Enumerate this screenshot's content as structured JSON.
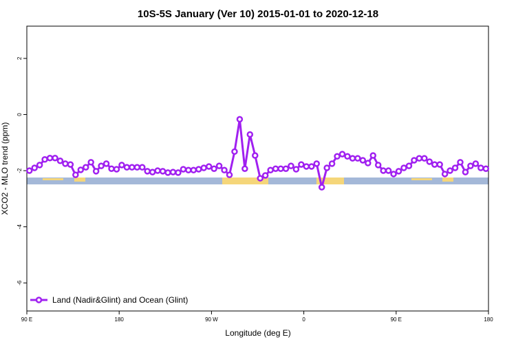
{
  "chart_data": {
    "type": "line",
    "title": "10S-5S January (Ver 10)   2015-01-01 to 2020-12-18",
    "x_label": "Longitude (deg E)",
    "y_label": "XCO2 - MLO trend (ppm)",
    "x": [
      92.5,
      97.5,
      102.5,
      107.5,
      112.5,
      117.5,
      122.5,
      127.5,
      132.5,
      137.5,
      142.5,
      147.5,
      152.5,
      157.5,
      162.5,
      167.5,
      172.5,
      177.5,
      182.5,
      187.5,
      192.5,
      197.5,
      202.5,
      207.5,
      212.5,
      217.5,
      222.5,
      227.5,
      232.5,
      237.5,
      242.5,
      247.5,
      252.5,
      257.5,
      262.5,
      267.5,
      272.5,
      277.5,
      282.5,
      287.5,
      292.5,
      297.5,
      302.5,
      307.5,
      312.5,
      317.5,
      322.5,
      327.5,
      332.5,
      337.5,
      342.5,
      347.5,
      352.5,
      357.5,
      362.5,
      367.5,
      372.5,
      377.5,
      382.5,
      387.5,
      392.5,
      397.5,
      402.5,
      407.5,
      412.5,
      417.5,
      422.5,
      427.5,
      432.5,
      437.5,
      442.5,
      447.5,
      452.5,
      457.5,
      462.5,
      467.5,
      472.5,
      477.5,
      482.5,
      487.5,
      492.5,
      497.5,
      502.5,
      507.5,
      512.5,
      517.5,
      522.5,
      527.5,
      532.5,
      537.5
    ],
    "series": [
      {
        "name": "Land (Nadir&Glint) and Ocean (Glint)",
        "color": "#a020f0",
        "values": [
          -2.0,
          -1.9,
          -1.8,
          -1.6,
          -1.55,
          -1.55,
          -1.65,
          -1.75,
          -1.78,
          -2.15,
          -1.97,
          -1.88,
          -1.7,
          -2.02,
          -1.83,
          -1.75,
          -1.93,
          -1.95,
          -1.8,
          -1.88,
          -1.88,
          -1.88,
          -1.88,
          -2.02,
          -2.05,
          -2.0,
          -2.02,
          -2.07,
          -2.05,
          -2.07,
          -1.95,
          -1.98,
          -1.98,
          -1.95,
          -1.9,
          -1.85,
          -1.93,
          -1.83,
          -1.98,
          -2.15,
          -1.32,
          -0.17,
          -1.93,
          -0.71,
          -1.46,
          -2.27,
          -2.17,
          -1.98,
          -1.93,
          -1.93,
          -1.93,
          -1.83,
          -1.95,
          -1.78,
          -1.85,
          -1.85,
          -1.75,
          -2.59,
          -1.9,
          -1.75,
          -1.49,
          -1.41,
          -1.49,
          -1.56,
          -1.56,
          -1.63,
          -1.73,
          -1.46,
          -1.8,
          -2.0,
          -2.0,
          -2.12,
          -2.02,
          -1.9,
          -1.83,
          -1.63,
          -1.56,
          -1.56,
          -1.68,
          -1.78,
          -1.78,
          -2.12,
          -2.0,
          -1.9,
          -1.7,
          -2.05,
          -1.83,
          -1.75,
          -1.9,
          -1.93
        ]
      }
    ],
    "xlim": [
      90,
      540
    ],
    "xticks": [
      {
        "value": 90,
        "label": "90 E"
      },
      {
        "value": 180,
        "label": "180"
      },
      {
        "value": 270,
        "label": "90 W"
      },
      {
        "value": 360,
        "label": "0"
      },
      {
        "value": 450,
        "label": "90 E"
      },
      {
        "value": 540,
        "label": "180"
      }
    ],
    "ylim": [
      -7,
      3.15
    ],
    "yticks": [
      -6,
      -4,
      -2,
      0,
      2
    ],
    "legend": "bottom-left"
  }
}
